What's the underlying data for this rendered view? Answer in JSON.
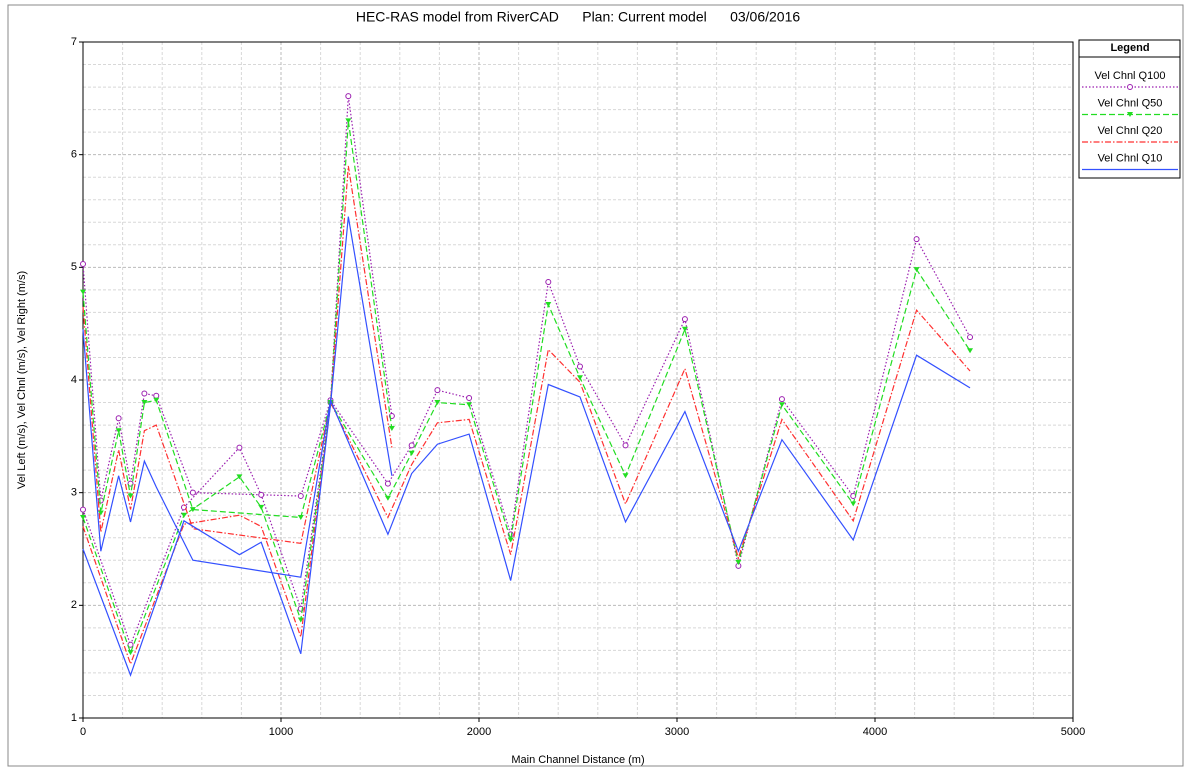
{
  "chart_data": {
    "type": "line",
    "title": "HEC-RAS model from RiverCAD      Plan: Current model      03/06/2016",
    "xlabel": "Main Channel Distance (m)",
    "ylabel": "Vel Left (m/s), Vel Chnl (m/s), Vel Right (m/s)",
    "legend_title": "Legend",
    "x": [
      0,
      240,
      510,
      790,
      900,
      1100,
      1250,
      1340,
      1560,
      null,
      0,
      90,
      180,
      240,
      310,
      370,
      555,
      1100,
      1250,
      1540,
      1660,
      1790,
      1950,
      2160,
      2350,
      2510,
      2740,
      3040,
      3310,
      3530,
      3890,
      4210,
      4480
    ],
    "series": [
      {
        "name": "Vel Chnl Q100",
        "color": "#9b1fb0",
        "dash": "dotted",
        "marker": "circle",
        "values": [
          2.85,
          1.65,
          2.87,
          3.4,
          2.98,
          1.97,
          3.8,
          6.52,
          3.68,
          null,
          5.03,
          2.93,
          3.66,
          3.08,
          3.88,
          3.86,
          3.0,
          2.97,
          3.82,
          3.08,
          3.42,
          3.91,
          3.84,
          2.63,
          4.87,
          4.12,
          3.42,
          4.54,
          2.35,
          3.83,
          2.97,
          5.25,
          4.38
        ]
      },
      {
        "name": "Vel Chnl Q50",
        "color": "#22dd22",
        "dash": "dashed",
        "marker": "triangle",
        "values": [
          2.78,
          1.58,
          2.8,
          3.14,
          2.87,
          1.87,
          3.78,
          6.3,
          3.57,
          null,
          4.78,
          2.82,
          3.55,
          2.97,
          3.8,
          3.82,
          2.85,
          2.78,
          3.8,
          2.95,
          3.35,
          3.8,
          3.78,
          2.58,
          4.67,
          4.02,
          3.15,
          4.45,
          2.38,
          3.78,
          2.9,
          4.98,
          4.26
        ]
      },
      {
        "name": "Vel Chnl Q20",
        "color": "#ff3030",
        "dash": "dashdot",
        "marker": "none",
        "values": [
          2.7,
          1.48,
          2.72,
          2.8,
          2.7,
          1.72,
          3.78,
          5.9,
          3.4,
          null,
          4.65,
          2.65,
          3.38,
          2.85,
          3.55,
          3.6,
          2.68,
          2.55,
          3.8,
          2.78,
          3.25,
          3.62,
          3.65,
          2.45,
          4.27,
          3.98,
          2.9,
          4.1,
          2.42,
          3.65,
          2.75,
          4.62,
          4.08
        ]
      },
      {
        "name": "Vel Chnl Q10",
        "color": "#3350ff",
        "dash": "solid",
        "marker": "none",
        "values": [
          2.5,
          1.38,
          2.75,
          2.45,
          2.56,
          1.57,
          3.78,
          5.45,
          3.15,
          null,
          4.45,
          2.48,
          3.15,
          2.74,
          3.28,
          3.05,
          2.4,
          2.25,
          3.82,
          2.63,
          3.17,
          3.43,
          3.52,
          2.22,
          3.96,
          3.85,
          2.74,
          3.72,
          2.48,
          3.47,
          2.58,
          4.22,
          3.93
        ]
      }
    ],
    "xlim": [
      0,
      5000
    ],
    "xticks": [
      0,
      1000,
      2000,
      3000,
      4000,
      5000
    ],
    "ylim": [
      1,
      7
    ],
    "yticks": [
      1,
      2,
      3,
      4,
      5,
      6,
      7
    ],
    "grid": true,
    "legend": "right"
  }
}
